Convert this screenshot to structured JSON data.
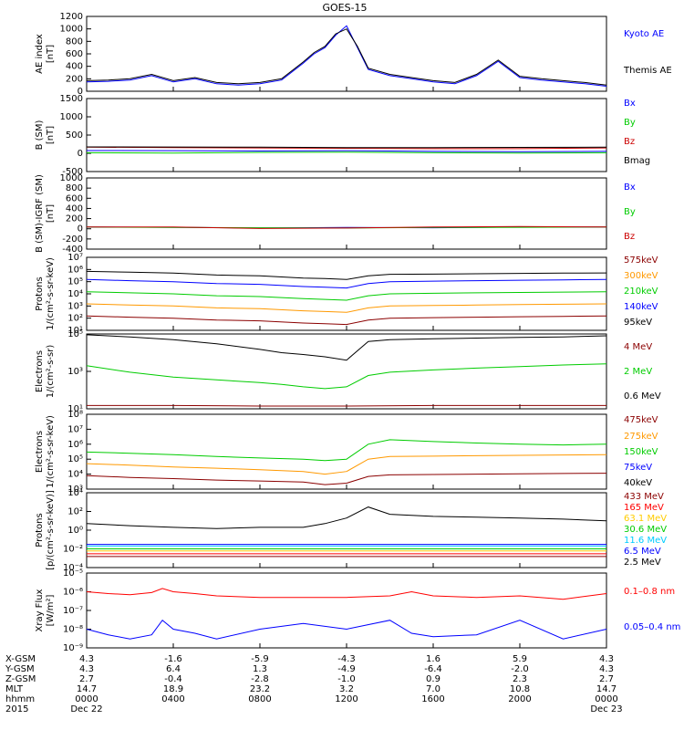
{
  "title": "GOES-15",
  "chart_data": [
    {
      "type": "line",
      "ylabel": "AE index",
      "yunit": "[nT]",
      "yticks": [
        "1200",
        "1000",
        "800",
        "600",
        "400",
        "200",
        "0"
      ],
      "yscale": "linear",
      "ylim": [
        0,
        1200
      ],
      "series": [
        {
          "name": "Kyoto AE",
          "color": "#0000ff",
          "x": [
            0,
            1,
            2,
            3,
            4,
            5,
            6,
            7,
            8,
            9,
            10,
            10.5,
            11,
            11.5,
            12,
            12.5,
            13,
            14,
            15,
            16,
            17,
            18,
            19,
            20,
            21,
            22,
            23,
            24
          ],
          "y": [
            150,
            160,
            180,
            250,
            150,
            200,
            120,
            100,
            120,
            180,
            450,
            600,
            700,
            900,
            1050,
            700,
            350,
            250,
            200,
            150,
            120,
            250,
            480,
            220,
            180,
            150,
            120,
            80
          ]
        },
        {
          "name": "Themis AE",
          "color": "#000000",
          "x": [
            0,
            1,
            2,
            3,
            4,
            5,
            6,
            7,
            8,
            9,
            10,
            10.5,
            11,
            11.5,
            12,
            12.5,
            13,
            14,
            15,
            16,
            17,
            18,
            19,
            20,
            21,
            22,
            23,
            24
          ],
          "y": [
            170,
            180,
            200,
            270,
            170,
            220,
            140,
            120,
            140,
            200,
            470,
            620,
            720,
            920,
            1000,
            720,
            370,
            270,
            220,
            170,
            140,
            270,
            500,
            240,
            200,
            170,
            140,
            100
          ]
        }
      ]
    },
    {
      "type": "line",
      "ylabel": "B (SM)",
      "yunit": "[nT]",
      "yticks": [
        "1500",
        "1000",
        "500",
        "0",
        "-500"
      ],
      "yscale": "linear",
      "ylim": [
        -600,
        1500
      ],
      "series": [
        {
          "name": "Bx",
          "color": "#0000ff",
          "x": [
            0,
            4,
            8,
            12,
            16,
            20,
            24
          ],
          "y": [
            5,
            0,
            -10,
            0,
            -20,
            -30,
            -20
          ]
        },
        {
          "name": "By",
          "color": "#00cc00",
          "x": [
            0,
            4,
            8,
            12,
            16,
            20,
            24
          ],
          "y": [
            -60,
            -70,
            -50,
            -40,
            -60,
            -70,
            -60
          ]
        },
        {
          "name": "Bz",
          "color": "#cc0000",
          "x": [
            0,
            4,
            8,
            12,
            16,
            20,
            24
          ],
          "y": [
            100,
            90,
            80,
            70,
            60,
            60,
            80
          ]
        },
        {
          "name": "Bmag",
          "color": "#000000",
          "x": [
            0,
            4,
            8,
            12,
            16,
            20,
            24
          ],
          "y": [
            110,
            105,
            100,
            90,
            90,
            95,
            100
          ]
        }
      ]
    },
    {
      "type": "line",
      "ylabel": "B (SM)-IGRF (SM)",
      "yunit": "[nT]",
      "yticks": [
        "1000",
        "800",
        "600",
        "400",
        "200",
        "0",
        "-200",
        "-400"
      ],
      "yscale": "linear",
      "ylim": [
        -450,
        1000
      ],
      "series": [
        {
          "name": "Bx",
          "color": "#0000ff",
          "x": [
            0,
            4,
            8,
            12,
            16,
            20,
            24
          ],
          "y": [
            0,
            -5,
            -20,
            -10,
            -15,
            0,
            0
          ]
        },
        {
          "name": "By",
          "color": "#00cc00",
          "x": [
            0,
            4,
            8,
            12,
            16,
            20,
            24
          ],
          "y": [
            0,
            -10,
            -15,
            -20,
            -10,
            -5,
            0
          ]
        },
        {
          "name": "Bz",
          "color": "#cc0000",
          "x": [
            0,
            4,
            8,
            12,
            16,
            20,
            24
          ],
          "y": [
            0,
            0,
            -30,
            -20,
            0,
            10,
            0
          ]
        }
      ]
    },
    {
      "type": "line",
      "ylabel": "Protons",
      "yunit": "1/(cm²-s-sr-keV)",
      "yticks": [
        "10⁷",
        "10⁶",
        "10⁵",
        "10⁴",
        "10³",
        "10²",
        "10¹"
      ],
      "yscale": "log",
      "ylim": [
        10,
        10000000
      ],
      "series": [
        {
          "name": "575keV",
          "color": "#8b0000",
          "x": [
            0,
            2,
            4,
            6,
            8,
            10,
            11,
            12,
            13,
            14,
            16,
            18,
            20,
            22,
            24
          ],
          "y": [
            150,
            120,
            100,
            70,
            60,
            40,
            35,
            30,
            70,
            100,
            110,
            120,
            130,
            140,
            150
          ]
        },
        {
          "name": "300keV",
          "color": "#ff9900",
          "x": [
            0,
            2,
            4,
            6,
            8,
            10,
            11,
            12,
            13,
            14,
            16,
            18,
            20,
            22,
            24
          ],
          "y": [
            1500,
            1200,
            1000,
            700,
            600,
            400,
            350,
            300,
            700,
            1000,
            1100,
            1200,
            1300,
            1400,
            1500
          ]
        },
        {
          "name": "210keV",
          "color": "#00cc00",
          "x": [
            0,
            2,
            4,
            6,
            8,
            10,
            11,
            12,
            13,
            14,
            16,
            18,
            20,
            22,
            24
          ],
          "y": [
            15000,
            12000,
            10000,
            7000,
            6000,
            4000,
            3500,
            3000,
            7000,
            10000,
            11000,
            12000,
            13000,
            14000,
            15000
          ]
        },
        {
          "name": "140keV",
          "color": "#0000ff",
          "x": [
            0,
            2,
            4,
            6,
            8,
            10,
            11,
            12,
            13,
            14,
            16,
            18,
            20,
            22,
            24
          ],
          "y": [
            150000,
            120000,
            100000,
            70000,
            60000,
            40000,
            35000,
            30000,
            70000,
            100000,
            110000,
            120000,
            130000,
            140000,
            150000
          ]
        },
        {
          "name": "95keV",
          "color": "#000000",
          "x": [
            0,
            2,
            4,
            6,
            8,
            10,
            11,
            12,
            13,
            14,
            16,
            18,
            20,
            22,
            24
          ],
          "y": [
            700000,
            600000,
            500000,
            350000,
            300000,
            200000,
            180000,
            150000,
            300000,
            400000,
            420000,
            450000,
            480000,
            500000,
            520000
          ]
        }
      ]
    },
    {
      "type": "line",
      "ylabel": "Electrons",
      "yunit": "1/(cm²-s-sr)",
      "yticks": [
        "10⁵",
        "10³",
        "10¹"
      ],
      "yscale": "log",
      "ylim": [
        10,
        100000
      ],
      "series": [
        {
          "name": "4 MeV",
          "color": "#8b0000",
          "x": [
            0,
            4,
            8,
            12,
            16,
            20,
            24
          ],
          "y": [
            15,
            15,
            14,
            14,
            15,
            15,
            15
          ]
        },
        {
          "name": "2 MeV",
          "color": "#00cc00",
          "x": [
            0,
            2,
            4,
            6,
            8,
            9,
            10,
            11,
            12,
            13,
            14,
            16,
            18,
            20,
            22,
            24
          ],
          "y": [
            2000,
            900,
            500,
            350,
            250,
            200,
            150,
            120,
            150,
            600,
            900,
            1200,
            1500,
            1800,
            2200,
            2500
          ]
        },
        {
          "name": "0.6 MeV",
          "color": "#000000",
          "x": [
            0,
            2,
            4,
            6,
            8,
            9,
            10,
            11,
            12,
            13,
            14,
            16,
            18,
            20,
            22,
            24
          ],
          "y": [
            90000,
            70000,
            50000,
            30000,
            15000,
            10000,
            8000,
            6000,
            4000,
            40000,
            50000,
            55000,
            60000,
            65000,
            70000,
            80000
          ]
        }
      ]
    },
    {
      "type": "line",
      "ylabel": "Electrons",
      "yunit": "1/(cm²-s-sr-keV)",
      "yticks": [
        "10⁸",
        "10⁷",
        "10⁶",
        "10⁵",
        "10⁴",
        "10³"
      ],
      "yscale": "log",
      "ylim": [
        1000,
        100000000
      ],
      "series": [
        {
          "name": "475keV",
          "color": "#8b0000",
          "x": [
            0,
            2,
            4,
            6,
            8,
            10,
            11,
            12,
            13,
            14,
            16,
            18,
            20,
            22,
            24
          ],
          "y": [
            8000,
            6000,
            5000,
            4000,
            3500,
            3000,
            2000,
            2500,
            7000,
            9000,
            9500,
            10000,
            10500,
            11000,
            11500
          ]
        },
        {
          "name": "275keV",
          "color": "#ff9900",
          "x": [
            0,
            2,
            4,
            6,
            8,
            10,
            11,
            12,
            13,
            14,
            16,
            18,
            20,
            22,
            24
          ],
          "y": [
            50000,
            40000,
            30000,
            25000,
            20000,
            15000,
            10000,
            15000,
            100000,
            150000,
            160000,
            170000,
            180000,
            190000,
            200000
          ]
        },
        {
          "name": "150keV",
          "color": "#00cc00",
          "x": [
            0,
            2,
            4,
            6,
            8,
            10,
            11,
            12,
            13,
            14,
            16,
            18,
            20,
            22,
            24
          ],
          "y": [
            300000,
            250000,
            200000,
            150000,
            120000,
            100000,
            80000,
            100000,
            1000000,
            2000000,
            1500000,
            1200000,
            1000000,
            900000,
            1000000
          ]
        },
        {
          "name": "75keV",
          "color": "#0000ff",
          "x": [
            0,
            12,
            24
          ],
          "y": [
            0,
            0,
            0
          ]
        },
        {
          "name": "40keV",
          "color": "#000000",
          "x": [
            0,
            12,
            24
          ],
          "y": [
            0,
            0,
            0
          ]
        }
      ]
    },
    {
      "type": "line",
      "ylabel": "Protons",
      "yunit": "[p/(cm²-s-sr-keV)]",
      "yticks": [
        "10⁴",
        "10²",
        "10⁰",
        "10⁻²",
        "10⁻⁴"
      ],
      "yscale": "log",
      "ylim": [
        0.0001,
        10000
      ],
      "series": [
        {
          "name": "433 MeV",
          "color": "#8b0000",
          "x": [
            0,
            24
          ],
          "y": [
            0.0015,
            0.0015
          ]
        },
        {
          "name": "165 MeV",
          "color": "#ff0000",
          "x": [
            0,
            24
          ],
          "y": [
            0.003,
            0.003
          ]
        },
        {
          "name": "63.1 MeV",
          "color": "#ffcc00",
          "x": [
            0,
            24
          ],
          "y": [
            0.006,
            0.006
          ]
        },
        {
          "name": "30.6 MeV",
          "color": "#00cc00",
          "x": [
            0,
            24
          ],
          "y": [
            0.01,
            0.01
          ]
        },
        {
          "name": "11.6 MeV",
          "color": "#00ccff",
          "x": [
            0,
            24
          ],
          "y": [
            0.02,
            0.02
          ]
        },
        {
          "name": "6.5 MeV",
          "color": "#0000ff",
          "x": [
            0,
            24
          ],
          "y": [
            0.03,
            0.03
          ]
        },
        {
          "name": "2.5 MeV",
          "color": "#000000",
          "x": [
            0,
            2,
            4,
            6,
            8,
            10,
            11,
            12,
            13,
            14,
            16,
            18,
            20,
            22,
            24
          ],
          "y": [
            5,
            3,
            2,
            1.5,
            2,
            2,
            5,
            20,
            300,
            50,
            30,
            25,
            20,
            15,
            10
          ]
        }
      ]
    },
    {
      "type": "line",
      "ylabel": "Xray Flux",
      "yunit": "[W/m²]",
      "yticks": [
        "10⁻⁵",
        "10⁻⁶",
        "10⁻⁷",
        "10⁻⁸",
        "10⁻⁹"
      ],
      "yscale": "log",
      "ylim": [
        1e-09,
        1e-05
      ],
      "series": [
        {
          "name": "0.1–0.8 nm",
          "color": "#ff0000",
          "x": [
            0,
            1,
            2,
            3,
            3.5,
            4,
            5,
            6,
            8,
            10,
            12,
            14,
            15,
            16,
            18,
            20,
            22,
            24
          ],
          "y": [
            1e-06,
            8e-07,
            7e-07,
            9e-07,
            1.5e-06,
            1e-06,
            8e-07,
            6e-07,
            5e-07,
            5e-07,
            5e-07,
            6e-07,
            1e-06,
            6e-07,
            5e-07,
            6e-07,
            4e-07,
            8e-07
          ]
        },
        {
          "name": "0.05–0.4 nm",
          "color": "#0000ff",
          "x": [
            0,
            1,
            2,
            3,
            3.5,
            4,
            5,
            6,
            8,
            10,
            12,
            14,
            15,
            16,
            18,
            20,
            22,
            24
          ],
          "y": [
            1e-08,
            5e-09,
            3e-09,
            5e-09,
            3e-08,
            1e-08,
            6e-09,
            3e-09,
            1e-08,
            2e-08,
            1e-08,
            3e-08,
            6e-09,
            4e-09,
            5e-09,
            3e-08,
            3e-09,
            1e-08
          ]
        }
      ]
    }
  ],
  "xaxis": {
    "row_labels": [
      "X-GSM",
      "Y-GSM",
      "Z-GSM",
      "MLT",
      "hhmm",
      "2015"
    ],
    "ticks": [
      {
        "xgsm": "4.3",
        "ygsm": "4.3",
        "zgsm": "2.7",
        "mlt": "14.7",
        "hhmm": "0000",
        "date": "Dec 22"
      },
      {
        "xgsm": "-1.6",
        "ygsm": "6.4",
        "zgsm": "-0.4",
        "mlt": "18.9",
        "hhmm": "0400",
        "date": ""
      },
      {
        "xgsm": "-5.9",
        "ygsm": "1.3",
        "zgsm": "-2.8",
        "mlt": "23.2",
        "hhmm": "0800",
        "date": ""
      },
      {
        "xgsm": "-4.3",
        "ygsm": "-4.9",
        "zgsm": "-1.0",
        "mlt": "3.2",
        "hhmm": "1200",
        "date": ""
      },
      {
        "xgsm": "1.6",
        "ygsm": "-6.4",
        "zgsm": "0.9",
        "mlt": "7.0",
        "hhmm": "1600",
        "date": ""
      },
      {
        "xgsm": "5.9",
        "ygsm": "-2.0",
        "zgsm": "2.3",
        "mlt": "10.8",
        "hhmm": "2000",
        "date": ""
      },
      {
        "xgsm": "4.3",
        "ygsm": "4.3",
        "zgsm": "2.7",
        "mlt": "14.7",
        "hhmm": "0000",
        "date": "Dec 23"
      }
    ]
  }
}
